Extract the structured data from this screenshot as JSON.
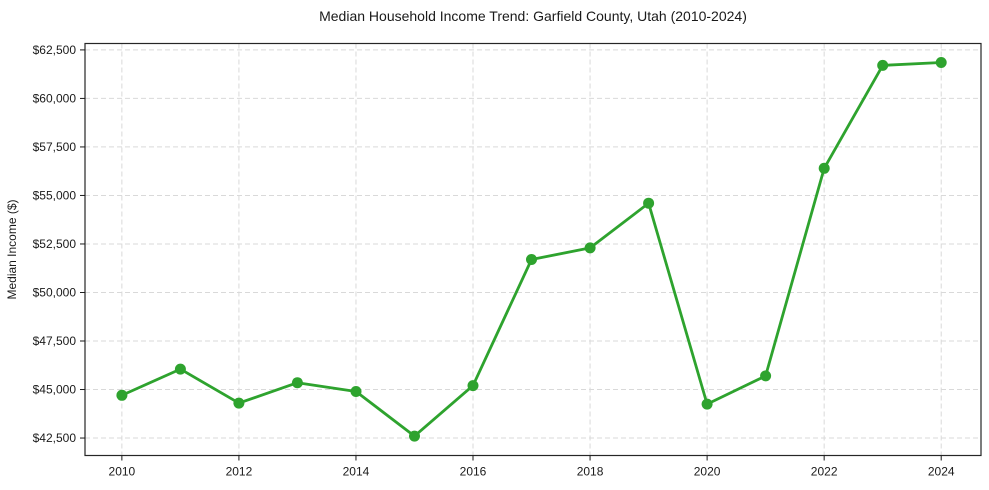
{
  "chart_data": {
    "type": "line",
    "title": "Median Household Income Trend: Garfield County, Utah (2010-2024)",
    "xlabel": "",
    "ylabel": "Median Income ($)",
    "x": [
      2010,
      2011,
      2012,
      2013,
      2014,
      2015,
      2016,
      2017,
      2018,
      2019,
      2020,
      2021,
      2022,
      2023,
      2024
    ],
    "values": [
      44700,
      46050,
      44300,
      45350,
      44900,
      42600,
      45200,
      51700,
      52300,
      54600,
      44250,
      45700,
      56400,
      61700,
      61850
    ],
    "series_name": "Median household income",
    "xticks": [
      2010,
      2012,
      2014,
      2016,
      2018,
      2020,
      2022,
      2024
    ],
    "xtick_labels": [
      "2010",
      "2012",
      "2014",
      "2016",
      "2018",
      "2020",
      "2022",
      "2024"
    ],
    "yticks": [
      42500,
      45000,
      47500,
      50000,
      52500,
      55000,
      57500,
      60000,
      62500
    ],
    "ytick_labels": [
      "$42,500",
      "$45,000",
      "$47,500",
      "$50,000",
      "$52,500",
      "$55,000",
      "$57,500",
      "$60,000",
      "$62,500"
    ],
    "xlim": [
      2009.37,
      2024.68
    ],
    "ylim": [
      41600,
      62830
    ],
    "grid": "on",
    "grid_style": "dashed",
    "legend_position": "none",
    "line_color": "#2ea32e",
    "marker": "circle",
    "grid_color": "#d9d9d9",
    "axis_color": "#262626",
    "tick_color": "#1a1a1a"
  }
}
